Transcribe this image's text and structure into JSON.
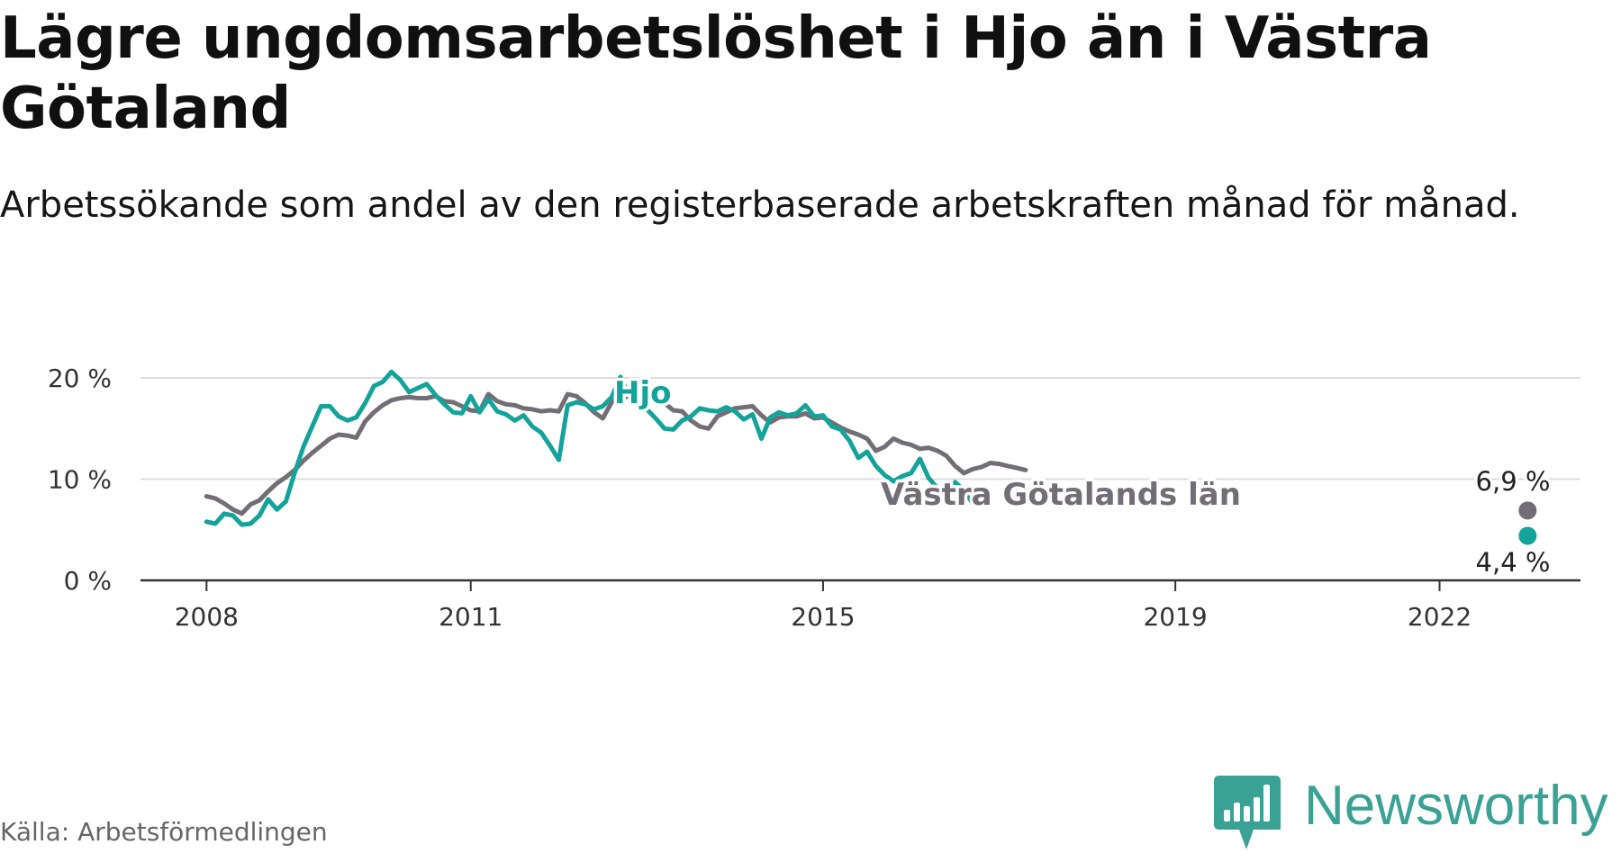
{
  "title": "Lägre ungdomsarbetslöshet i Hjo än i Västra Götaland",
  "subtitle": "Arbetssökande som andel av den registerbaserade arbetskraften månad för månad.",
  "source": "Källa: Arbetsförmedlingen",
  "brand": "Newsworthy",
  "colors": {
    "hjo": "#13a39a",
    "vg": "#736e76",
    "grid": "#dddddd",
    "axis": "#333333",
    "brand": "#3aa294"
  },
  "chart_data": {
    "type": "line",
    "title": "Lägre ungdomsarbetslöshet i Hjo än i Västra Götaland",
    "xlabel": "",
    "ylabel": "",
    "xlim": [
      2007.25,
      2023.6
    ],
    "ylim": [
      0,
      20
    ],
    "x_ticks": [
      2008,
      2011,
      2015,
      2019,
      2022
    ],
    "x_tick_labels": [
      "2008",
      "2011",
      "2015",
      "2019",
      "2022"
    ],
    "y_ticks": [
      0,
      10,
      20
    ],
    "y_tick_labels": [
      "0 %",
      "10 %",
      "20 %"
    ],
    "grid": true,
    "legend": "inline labels",
    "series": [
      {
        "name": "Västra Götalands län",
        "label": "Västra Götalands län",
        "color": "#736e76",
        "end_label": "6,9 %",
        "end_x": 2023.0,
        "end_y": 6.9,
        "points": [
          [
            2008.0,
            8.3
          ],
          [
            2008.1,
            8.1
          ],
          [
            2008.2,
            7.6
          ],
          [
            2008.3,
            7.0
          ],
          [
            2008.4,
            6.6
          ],
          [
            2008.5,
            7.5
          ],
          [
            2008.6,
            7.9
          ],
          [
            2008.7,
            8.8
          ],
          [
            2008.8,
            9.6
          ],
          [
            2008.9,
            10.2
          ],
          [
            2009.0,
            10.9
          ],
          [
            2009.1,
            11.8
          ],
          [
            2009.2,
            12.6
          ],
          [
            2009.3,
            13.3
          ],
          [
            2009.4,
            14.0
          ],
          [
            2009.5,
            14.4
          ],
          [
            2009.6,
            14.3
          ],
          [
            2009.7,
            14.1
          ],
          [
            2009.8,
            15.7
          ],
          [
            2009.9,
            16.6
          ],
          [
            2010.0,
            17.3
          ],
          [
            2010.1,
            17.8
          ],
          [
            2010.2,
            18.0
          ],
          [
            2010.3,
            18.1
          ],
          [
            2010.4,
            18.0
          ],
          [
            2010.5,
            18.0
          ],
          [
            2010.6,
            18.2
          ],
          [
            2010.7,
            17.7
          ],
          [
            2010.8,
            17.6
          ],
          [
            2010.9,
            17.2
          ],
          [
            2011.0,
            16.8
          ],
          [
            2011.1,
            16.7
          ],
          [
            2011.2,
            18.4
          ],
          [
            2011.3,
            17.7
          ],
          [
            2011.4,
            17.4
          ],
          [
            2011.5,
            17.3
          ],
          [
            2011.6,
            17.0
          ],
          [
            2011.7,
            16.9
          ],
          [
            2011.8,
            16.7
          ],
          [
            2011.9,
            16.8
          ],
          [
            2012.0,
            16.7
          ],
          [
            2012.1,
            18.4
          ],
          [
            2012.2,
            18.2
          ],
          [
            2012.3,
            17.5
          ],
          [
            2012.4,
            16.6
          ],
          [
            2012.5,
            16.0
          ],
          [
            2012.6,
            17.6
          ],
          [
            2012.7,
            18.0
          ],
          [
            2012.8,
            18.2
          ],
          [
            2012.9,
            18.0
          ],
          [
            2013.0,
            18.0
          ],
          [
            2013.1,
            18.1
          ],
          [
            2013.2,
            17.5
          ],
          [
            2013.3,
            16.8
          ],
          [
            2013.4,
            16.7
          ],
          [
            2013.5,
            15.8
          ],
          [
            2013.6,
            15.2
          ],
          [
            2013.7,
            15.0
          ],
          [
            2013.8,
            16.2
          ],
          [
            2013.9,
            16.6
          ],
          [
            2014.0,
            17.0
          ],
          [
            2014.1,
            17.1
          ],
          [
            2014.2,
            17.2
          ],
          [
            2014.3,
            16.3
          ],
          [
            2014.4,
            15.6
          ],
          [
            2014.5,
            16.1
          ],
          [
            2014.6,
            16.2
          ],
          [
            2014.7,
            16.2
          ],
          [
            2014.8,
            16.5
          ],
          [
            2014.9,
            16.0
          ],
          [
            2015.0,
            16.1
          ],
          [
            2015.1,
            15.6
          ],
          [
            2015.2,
            15.1
          ],
          [
            2015.3,
            14.7
          ],
          [
            2015.4,
            14.4
          ],
          [
            2015.5,
            14.0
          ],
          [
            2015.6,
            12.8
          ],
          [
            2015.7,
            13.2
          ],
          [
            2015.8,
            14.0
          ],
          [
            2015.9,
            13.6
          ],
          [
            2016.0,
            13.4
          ],
          [
            2016.1,
            13.0
          ],
          [
            2016.2,
            13.1
          ],
          [
            2016.3,
            12.8
          ],
          [
            2016.4,
            12.3
          ],
          [
            2016.5,
            11.3
          ],
          [
            2016.6,
            10.6
          ],
          [
            2016.7,
            11.0
          ],
          [
            2016.8,
            11.2
          ],
          [
            2016.9,
            11.6
          ],
          [
            2017.0,
            11.5
          ],
          [
            2017.1,
            11.3
          ],
          [
            2017.2,
            11.1
          ],
          [
            2017.3,
            10.9
          ]
        ]
      },
      {
        "name": "Hjo",
        "label": "Hjo",
        "color": "#13a39a",
        "end_label": "4,4 %",
        "end_x": 2023.0,
        "end_y": 4.4,
        "points": [
          [
            2008.0,
            5.8
          ],
          [
            2008.1,
            5.6
          ],
          [
            2008.2,
            6.6
          ],
          [
            2008.3,
            6.4
          ],
          [
            2008.4,
            5.5
          ],
          [
            2008.5,
            5.6
          ],
          [
            2008.6,
            6.4
          ],
          [
            2008.7,
            8.0
          ],
          [
            2008.8,
            7.0
          ],
          [
            2008.9,
            7.8
          ],
          [
            2009.0,
            10.6
          ],
          [
            2009.1,
            13.2
          ],
          [
            2009.2,
            15.2
          ],
          [
            2009.3,
            17.2
          ],
          [
            2009.4,
            17.2
          ],
          [
            2009.5,
            16.2
          ],
          [
            2009.6,
            15.8
          ],
          [
            2009.7,
            16.1
          ],
          [
            2009.8,
            17.5
          ],
          [
            2009.9,
            19.2
          ],
          [
            2010.0,
            19.6
          ],
          [
            2010.1,
            20.6
          ],
          [
            2010.2,
            19.8
          ],
          [
            2010.3,
            18.6
          ],
          [
            2010.4,
            19.0
          ],
          [
            2010.5,
            19.4
          ],
          [
            2010.6,
            18.3
          ],
          [
            2010.7,
            17.4
          ],
          [
            2010.8,
            16.6
          ],
          [
            2010.9,
            16.5
          ],
          [
            2011.0,
            18.2
          ],
          [
            2011.1,
            16.6
          ],
          [
            2011.2,
            17.9
          ],
          [
            2011.3,
            16.7
          ],
          [
            2011.4,
            16.4
          ],
          [
            2011.5,
            15.8
          ],
          [
            2011.6,
            16.3
          ],
          [
            2011.7,
            15.2
          ],
          [
            2011.8,
            14.6
          ],
          [
            2011.9,
            13.3
          ],
          [
            2012.0,
            11.9
          ],
          [
            2012.1,
            17.3
          ],
          [
            2012.2,
            17.6
          ],
          [
            2012.3,
            17.4
          ],
          [
            2012.4,
            16.9
          ],
          [
            2012.5,
            17.2
          ],
          [
            2012.6,
            18.1
          ],
          [
            2012.7,
            20.1
          ],
          [
            2012.8,
            18.2
          ],
          [
            2012.9,
            17.9
          ],
          [
            2013.0,
            16.9
          ],
          [
            2013.1,
            16.0
          ],
          [
            2013.2,
            15.0
          ],
          [
            2013.3,
            14.9
          ],
          [
            2013.4,
            15.8
          ],
          [
            2013.5,
            16.2
          ],
          [
            2013.6,
            17.0
          ],
          [
            2013.7,
            16.8
          ],
          [
            2013.8,
            16.7
          ],
          [
            2013.9,
            17.1
          ],
          [
            2014.0,
            16.7
          ],
          [
            2014.1,
            15.9
          ],
          [
            2014.2,
            16.4
          ],
          [
            2014.3,
            14.0
          ],
          [
            2014.4,
            16.1
          ],
          [
            2014.5,
            16.6
          ],
          [
            2014.6,
            16.3
          ],
          [
            2014.7,
            16.5
          ],
          [
            2014.8,
            17.3
          ],
          [
            2014.9,
            16.2
          ],
          [
            2015.0,
            16.3
          ],
          [
            2015.1,
            15.2
          ],
          [
            2015.2,
            14.9
          ],
          [
            2015.3,
            13.8
          ],
          [
            2015.4,
            12.1
          ],
          [
            2015.5,
            12.7
          ],
          [
            2015.6,
            11.3
          ],
          [
            2015.7,
            10.4
          ],
          [
            2015.8,
            9.8
          ],
          [
            2015.9,
            10.3
          ],
          [
            2016.0,
            10.6
          ],
          [
            2016.1,
            12.0
          ],
          [
            2016.2,
            10.1
          ],
          [
            2016.3,
            9.1
          ],
          [
            2016.4,
            8.7
          ],
          [
            2016.5,
            9.7
          ],
          [
            2016.6,
            8.9
          ],
          [
            2016.7,
            7.6
          ]
        ]
      }
    ]
  }
}
